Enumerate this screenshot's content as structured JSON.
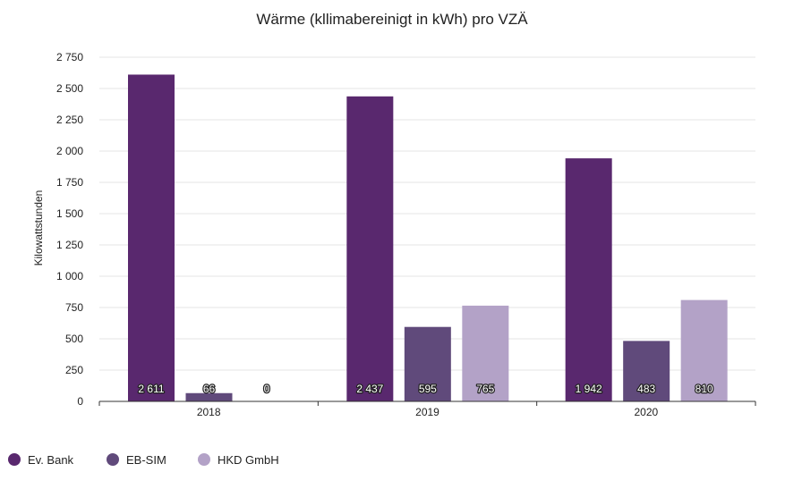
{
  "chart_data": {
    "type": "bar",
    "title": "Wärme (kllimabereinigt in kWh) pro VZÄ",
    "xlabel": "",
    "ylabel": "Kilowattstunden",
    "ylim": [
      0,
      2750
    ],
    "yticks": [
      0,
      250,
      500,
      750,
      1000,
      1250,
      1500,
      1750,
      2000,
      2250,
      2500,
      2750
    ],
    "ytick_labels": [
      "0",
      "250",
      "500",
      "750",
      "1 000",
      "1 250",
      "1 500",
      "1 750",
      "2 000",
      "2 250",
      "2 500",
      "2 750"
    ],
    "categories": [
      "2018",
      "2019",
      "2020"
    ],
    "series": [
      {
        "name": "Ev. Bank",
        "color": "#59286e",
        "values": [
          2611,
          2437,
          1942
        ],
        "labels": [
          "2 611",
          "2 437",
          "1 942"
        ]
      },
      {
        "name": "EB-SIM",
        "color": "#604a7b",
        "values": [
          66,
          595,
          483
        ],
        "labels": [
          "66",
          "595",
          "483"
        ]
      },
      {
        "name": "HKD GmbH",
        "color": "#b3a2c7",
        "values": [
          0,
          765,
          810
        ],
        "labels": [
          "0",
          "765",
          "810"
        ]
      }
    ],
    "grid": true,
    "legend": "bottom-left"
  }
}
